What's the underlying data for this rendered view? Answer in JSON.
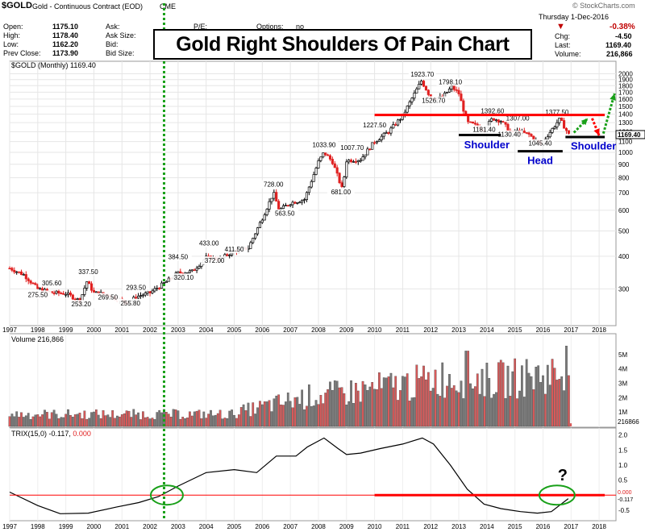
{
  "header": {
    "symbol": "$GOLD",
    "name": "Gold - Continuous Contract (EOD)",
    "exchange": "CME",
    "watermark": "© StockCharts.com",
    "date": "Thursday 1-Dec-2016",
    "open_label": "Open:",
    "open": "1175.10",
    "high_label": "High:",
    "high": "1178.40",
    "low_label": "Low:",
    "low": "1162.20",
    "prev_label": "Prev Close:",
    "prev": "1173.90",
    "ask_label": "Ask:",
    "asksize_label": "Ask Size:",
    "bid_label": "Bid:",
    "bidsize_label": "Bid Size:",
    "pe_label": "P/E:",
    "options_label": "Options:",
    "options_value": "no",
    "chg_pct": "-0.38%",
    "chg_label": "Chg:",
    "chg": "-4.50",
    "last_label": "Last:",
    "last": "1169.40",
    "volume_label": "Volume:",
    "volume": "216,866"
  },
  "title": "Gold Right Shoulders Of Pain Chart",
  "colors": {
    "up": "#000000",
    "down": "#e02020",
    "resistance": "#ff0000",
    "support": "#000000",
    "green": "#19a019",
    "annotation": "#0000cc",
    "vol_red": "#d85a5a",
    "vol_gray": "#7a7a7a"
  },
  "chart_data": [
    {
      "type": "line",
      "title": "$GOLD (Monthly) 1169.40",
      "scale": "log",
      "ylim": [
        220,
        2050
      ],
      "yticks": [
        300,
        400,
        500,
        600,
        700,
        800,
        900,
        1000,
        1100,
        1200,
        1300,
        1400,
        1500,
        1600,
        1700,
        1800,
        1900,
        2000
      ],
      "last_value": "1169.40",
      "x_years": [
        "1997",
        "1998",
        "1999",
        "2000",
        "2001",
        "2002",
        "2003",
        "2004",
        "2005",
        "2006",
        "2007",
        "2008",
        "2009",
        "2010",
        "2011",
        "2012",
        "2013",
        "2014",
        "2015",
        "2016",
        "2017",
        "2018"
      ],
      "series": [
        {
          "x": [
            1997.0,
            1997.5,
            1998.0,
            1998.5,
            1999.0,
            1999.5,
            1999.75,
            2000.0,
            2000.5,
            2001.0,
            2001.25,
            2001.5,
            2002.0,
            2002.5,
            2003.0,
            2003.5,
            2004.0,
            2004.5,
            2005.0,
            2005.5,
            2006.0,
            2006.4,
            2006.6,
            2007.0,
            2007.5,
            2008.0,
            2008.2,
            2008.5,
            2008.85,
            2009.0,
            2009.5,
            2010.0,
            2010.5,
            2011.0,
            2011.67,
            2012.0,
            2012.4,
            2012.75,
            2013.0,
            2013.3,
            2013.5,
            2013.9,
            2014.2,
            2014.5,
            2014.9,
            2015.0,
            2015.5,
            2015.9,
            2016.0,
            2016.5,
            2016.6,
            2016.92
          ],
          "values": [
            360,
            340,
            300,
            290,
            288,
            270,
            320,
            290,
            285,
            270,
            265,
            280,
            290,
            315,
            345,
            350,
            395,
            390,
            420,
            430,
            560,
            700,
            600,
            640,
            660,
            920,
            1000,
            920,
            720,
            930,
            940,
            1100,
            1200,
            1380,
            1880,
            1620,
            1620,
            1780,
            1680,
            1300,
            1280,
            1220,
            1350,
            1320,
            1180,
            1210,
            1170,
            1070,
            1100,
            1300,
            1340,
            1169.4
          ]
        }
      ],
      "labels": [
        {
          "text": "305.60",
          "x": 1998.5,
          "y": 305.6
        },
        {
          "text": "275.50",
          "x": 1998.0,
          "y": 275.5
        },
        {
          "text": "337.50",
          "x": 1999.8,
          "y": 337.5
        },
        {
          "text": "253.20",
          "x": 1999.55,
          "y": 253.2
        },
        {
          "text": "269.50",
          "x": 2000.5,
          "y": 269.5
        },
        {
          "text": "293.50",
          "x": 2001.5,
          "y": 293.5
        },
        {
          "text": "255.80",
          "x": 2001.3,
          "y": 255.8
        },
        {
          "text": "384.50",
          "x": 2003.0,
          "y": 384.5
        },
        {
          "text": "320.10",
          "x": 2003.2,
          "y": 320.1
        },
        {
          "text": "433.00",
          "x": 2004.1,
          "y": 433.0
        },
        {
          "text": "372.00",
          "x": 2004.3,
          "y": 372.0
        },
        {
          "text": "411.50",
          "x": 2005.0,
          "y": 411.5
        },
        {
          "text": "728.00",
          "x": 2006.4,
          "y": 728.0
        },
        {
          "text": "563.50",
          "x": 2006.8,
          "y": 563.5
        },
        {
          "text": "1033.90",
          "x": 2008.2,
          "y": 1033.9
        },
        {
          "text": "1007.70",
          "x": 2009.2,
          "y": 1007.7
        },
        {
          "text": "681.00",
          "x": 2008.8,
          "y": 681.0
        },
        {
          "text": "1227.50",
          "x": 2010.0,
          "y": 1227.5
        },
        {
          "text": "1923.70",
          "x": 2011.7,
          "y": 1923.7
        },
        {
          "text": "1798.10",
          "x": 2012.7,
          "y": 1798.1
        },
        {
          "text": "1526.70",
          "x": 2012.1,
          "y": 1526.7
        },
        {
          "text": "1392.60",
          "x": 2014.2,
          "y": 1392.6
        },
        {
          "text": "1181.40",
          "x": 2013.9,
          "y": 1181.4
        },
        {
          "text": "1307.00",
          "x": 2015.1,
          "y": 1307.0
        },
        {
          "text": "1130.40",
          "x": 2014.8,
          "y": 1130.4
        },
        {
          "text": "1377.50",
          "x": 2016.5,
          "y": 1377.5
        },
        {
          "text": "1045.40",
          "x": 2015.9,
          "y": 1045.4
        }
      ],
      "annotations": [
        "Shoulder",
        "Head",
        "Shoulder"
      ],
      "resistance": 1390,
      "support_levels": [
        {
          "y": 1165,
          "x": [
            2013.0,
            2014.5
          ]
        },
        {
          "y": 1010,
          "x": [
            2015.1,
            2016.7
          ]
        },
        {
          "y": 1145,
          "x": [
            2016.8,
            2018.2
          ]
        }
      ]
    },
    {
      "type": "bar",
      "title": "Volume 216,866",
      "ylim": [
        0,
        6000000
      ],
      "yticks": [
        [
          "1M",
          1000000
        ],
        [
          "2M",
          2000000
        ],
        [
          "3M",
          3000000
        ],
        [
          "4M",
          4000000
        ],
        [
          "5M",
          5000000
        ]
      ],
      "last_value": "216866",
      "note": "Monthly volume: ~0.9M (1997–2005), rising to ~2–3M (2008–2011), peaks ~5.2M (2013) and ~5.5M (late 2016)"
    },
    {
      "type": "line",
      "title": "TRIX(15,0)",
      "title_value": "-0.117",
      "title_zero": "0.000",
      "ylim": [
        -0.8,
        2.1
      ],
      "yticks": [
        "2.0",
        "1.5",
        "1.0",
        "0.5",
        "-0.5"
      ],
      "last_value": "-0.117",
      "zero_value": "0.000",
      "series": [
        {
          "x": [
            1997.0,
            1998.0,
            1998.8,
            1999.8,
            2000.8,
            2001.6,
            2002.3,
            2003.0,
            2004.0,
            2005.0,
            2005.8,
            2006.5,
            2007.2,
            2007.6,
            2008.2,
            2008.7,
            2009.0,
            2009.5,
            2010.2,
            2011.0,
            2011.7,
            2012.1,
            2012.7,
            2013.3,
            2013.9,
            2014.5,
            2015.2,
            2015.8,
            2016.3,
            2016.9
          ],
          "values": [
            0.1,
            -0.35,
            -0.62,
            -0.6,
            -0.4,
            -0.25,
            -0.05,
            0.3,
            0.75,
            0.85,
            0.75,
            1.3,
            1.3,
            1.6,
            1.9,
            1.55,
            1.35,
            1.4,
            1.55,
            1.7,
            1.9,
            1.7,
            1.0,
            0.2,
            -0.3,
            -0.45,
            -0.55,
            -0.6,
            -0.55,
            -0.117
          ]
        }
      ],
      "question": "?"
    }
  ]
}
